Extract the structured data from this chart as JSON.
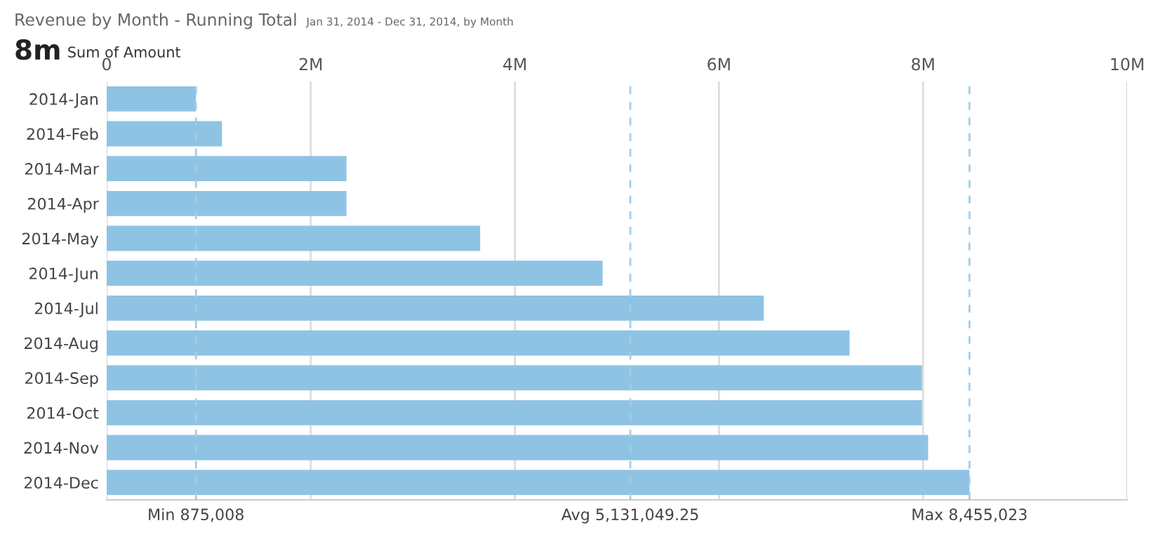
{
  "chart_data": {
    "type": "bar",
    "orientation": "horizontal",
    "title": "Revenue by Month - Running Total",
    "subtitle": "Jan 31, 2014 - Dec 31, 2014, by Month",
    "annotations": [
      "8m",
      "Sum of Amount"
    ],
    "categories": [
      "2014-Jan",
      "2014-Feb",
      "2014-Mar",
      "2014-Apr",
      "2014-May",
      "2014-Jun",
      "2014-Jul",
      "2014-Aug",
      "2014-Sep",
      "2014-Oct",
      "2014-Nov",
      "2014-Dec"
    ],
    "values": [
      875008,
      1130000,
      2350000,
      2350000,
      3660000,
      4860000,
      6440000,
      7280000,
      7990000,
      7990000,
      8050000,
      8455023
    ],
    "color": "#8fc3e4",
    "xlim": [
      0,
      10000000
    ],
    "xticks": [
      0,
      {
        "value": 2000000,
        "label": "2M"
      },
      {
        "value": 4000000,
        "label": "4M"
      },
      {
        "value": 6000000,
        "label": "6M"
      },
      {
        "value": 8000000,
        "label": "8M"
      },
      {
        "value": 10000000,
        "label": "10M"
      }
    ],
    "grid": "x",
    "ref_lines": [
      {
        "axis": "x",
        "value": 875008,
        "label": "Min 875,008",
        "color": "#9fcdee",
        "line_style": "dashed"
      },
      {
        "axis": "x",
        "value": 5131049.25,
        "label": "Avg 5,131,049.25",
        "color": "#9fcdee",
        "line_style": "dashed"
      },
      {
        "axis": "x",
        "value": 8455023,
        "label": "Max 8,455,023",
        "color": "#9fcdee",
        "line_style": "dashed"
      }
    ]
  }
}
